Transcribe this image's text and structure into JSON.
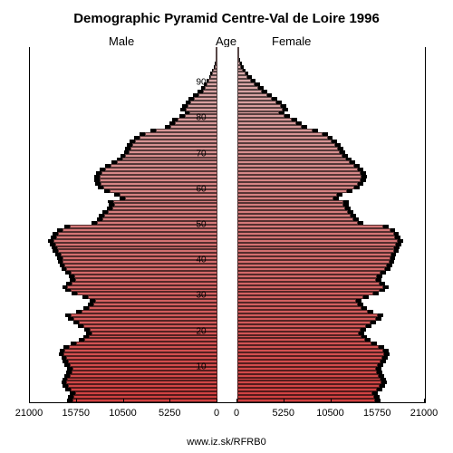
{
  "title": "Demographic Pyramid Centre-Val de Loire 1996",
  "labels": {
    "male": "Male",
    "age": "Age",
    "female": "Female"
  },
  "source": "www.iz.sk/RFRB0",
  "chart": {
    "type": "population-pyramid",
    "background_color": "#ffffff",
    "shadow_color": "#000000",
    "title_fontsize": 15,
    "label_fontsize": 13,
    "tick_fontsize": 11,
    "x_max": 21000,
    "x_ticks": [
      21000,
      15750,
      10500,
      5250,
      0,
      0,
      5250,
      10500,
      15750,
      21000
    ],
    "y_ticks": [
      10,
      20,
      30,
      40,
      50,
      60,
      70,
      80,
      90
    ],
    "age_min": 0,
    "age_max": 99,
    "color_top": "#d9b0b0",
    "color_bottom": "#d14040",
    "male": [
      16200,
      16100,
      15900,
      16400,
      16700,
      16900,
      16800,
      16500,
      16300,
      16200,
      16500,
      16700,
      16900,
      17200,
      17100,
      16600,
      15800,
      14900,
      14400,
      14100,
      14300,
      15000,
      15500,
      16100,
      16400,
      15200,
      14400,
      13900,
      13700,
      14500,
      15700,
      16400,
      16800,
      16300,
      15900,
      16000,
      16400,
      16900,
      17100,
      17300,
      17400,
      17600,
      17900,
      18000,
      18200,
      18400,
      18100,
      17900,
      17400,
      16500,
      13500,
      12900,
      12700,
      12300,
      11800,
      11600,
      11700,
      10400,
      11000,
      12100,
      12800,
      13100,
      13200,
      13200,
      13000,
      12600,
      12000,
      11300,
      10700,
      10300,
      9900,
      9700,
      9500,
      9200,
      8700,
      8100,
      6900,
      5300,
      4800,
      4500,
      3700,
      3100,
      3600,
      3400,
      3000,
      2600,
      2100,
      1650,
      1400,
      1250,
      1000,
      800,
      650,
      480,
      350,
      220,
      150,
      90,
      50,
      25
    ],
    "female": [
      15400,
      15300,
      15100,
      15600,
      15900,
      16100,
      16000,
      15800,
      15600,
      15500,
      15700,
      16000,
      16200,
      16400,
      16300,
      15800,
      15000,
      14300,
      13900,
      13600,
      13800,
      14400,
      14900,
      15500,
      15700,
      14600,
      13900,
      13500,
      13300,
      14100,
      15200,
      15900,
      16300,
      15900,
      15500,
      15600,
      16000,
      16500,
      16700,
      17000,
      17100,
      17200,
      17500,
      17600,
      17800,
      18000,
      17700,
      17500,
      17100,
      16300,
      13500,
      13000,
      12700,
      12400,
      12100,
      11900,
      11900,
      10800,
      11200,
      12300,
      13100,
      13500,
      13800,
      13900,
      13800,
      13500,
      13100,
      12600,
      12200,
      11800,
      11500,
      11300,
      11000,
      10600,
      10100,
      9500,
      8400,
      7200,
      6600,
      6100,
      5300,
      4700,
      5100,
      4900,
      4400,
      3900,
      3300,
      2700,
      2300,
      1900,
      1500,
      1150,
      900,
      650,
      450,
      300,
      180,
      100,
      55,
      25
    ],
    "male_shadow": [
      16800,
      16700,
      16500,
      17000,
      17300,
      17500,
      17400,
      17100,
      16900,
      16800,
      17100,
      17300,
      17500,
      17800,
      17700,
      17200,
      16400,
      15500,
      15000,
      14700,
      14900,
      15600,
      16100,
      16700,
      17000,
      15800,
      15000,
      14500,
      14300,
      15100,
      16300,
      17000,
      17400,
      16900,
      16500,
      16600,
      17000,
      17500,
      17700,
      17900,
      18000,
      18200,
      18500,
      18600,
      18800,
      19000,
      18700,
      18500,
      18000,
      17100,
      14100,
      13500,
      13300,
      12900,
      12400,
      12200,
      12300,
      11000,
      11600,
      12700,
      13400,
      13700,
      13800,
      13800,
      13600,
      13200,
      12600,
      11900,
      11300,
      10900,
      10500,
      10300,
      10100,
      9800,
      9300,
      8700,
      7500,
      5900,
      5400,
      5100,
      4300,
      3700,
      4200,
      4000,
      3600,
      3200,
      2700,
      2200,
      1800,
      1550,
      1200,
      950,
      780,
      600,
      450,
      300,
      200,
      120,
      70,
      35
    ],
    "female_shadow": [
      16000,
      15900,
      15700,
      16200,
      16500,
      16700,
      16600,
      16400,
      16200,
      16100,
      16300,
      16600,
      16800,
      17000,
      16900,
      16400,
      15600,
      14900,
      14500,
      14200,
      14400,
      15000,
      15500,
      16100,
      16300,
      15200,
      14500,
      14100,
      13900,
      14700,
      15800,
      16500,
      16900,
      16500,
      16100,
      16200,
      16600,
      17100,
      17300,
      17600,
      17700,
      17800,
      18100,
      18200,
      18400,
      18600,
      18300,
      18100,
      17700,
      16900,
      14100,
      13600,
      13300,
      13000,
      12700,
      12500,
      12500,
      11400,
      11800,
      12900,
      13700,
      14100,
      14400,
      14500,
      14400,
      14100,
      13700,
      13200,
      12800,
      12400,
      12100,
      11900,
      11600,
      11200,
      10700,
      10100,
      9000,
      7800,
      7200,
      6700,
      5900,
      5300,
      5700,
      5500,
      5000,
      4500,
      3900,
      3300,
      2900,
      2500,
      2000,
      1600,
      1250,
      950,
      700,
      480,
      300,
      180,
      100,
      50
    ]
  }
}
